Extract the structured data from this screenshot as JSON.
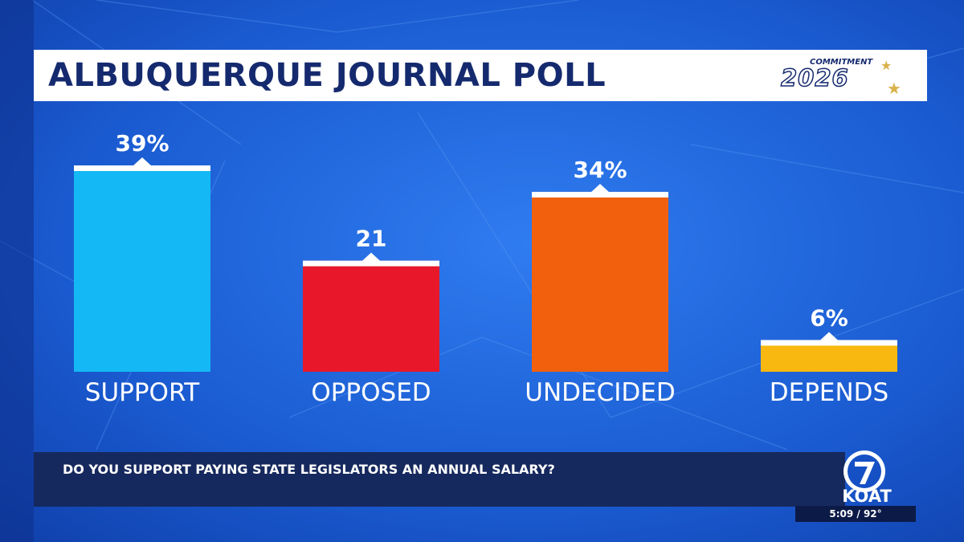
{
  "header": {
    "title": "ALBUQUERQUE JOURNAL POLL",
    "logo_small_text": "COMMITMENT",
    "logo_year_text": "2026"
  },
  "question": {
    "text": "DO YOU SUPPORT PAYING STATE LEGISLATORS AN ANNUAL SALARY?"
  },
  "station": {
    "channel_icon": "channel-7-circle-icon",
    "name": "KOAT",
    "time": "5:09",
    "temperature": "92°",
    "info_separator": " / "
  },
  "colors": {
    "background": "#1550c4",
    "title_text": "#152a6e",
    "question_bar": "#16295e"
  },
  "chart_data": {
    "type": "bar",
    "categories": [
      "SUPPORT",
      "OPPOSED",
      "UNDECIDED",
      "DEPENDS"
    ],
    "values": [
      39,
      21,
      34,
      6
    ],
    "value_labels": [
      "39%",
      "21",
      "34%",
      "6%"
    ],
    "colors": [
      "#14b8f5",
      "#e8182a",
      "#f2600d",
      "#f8b80f"
    ],
    "title": "",
    "xlabel": "",
    "ylabel": "",
    "ylim": [
      0,
      39
    ]
  }
}
